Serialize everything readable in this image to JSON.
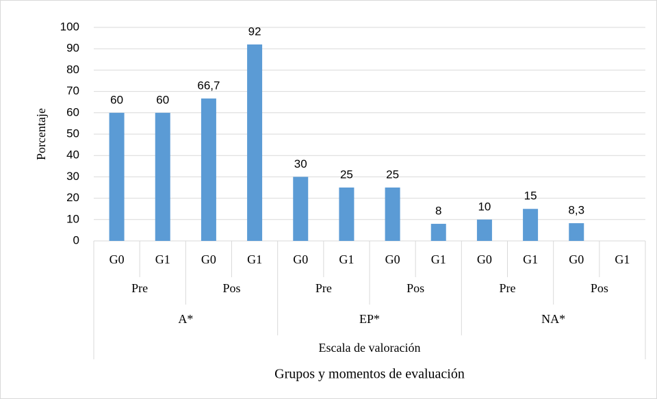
{
  "chart_data": {
    "type": "bar",
    "y_label": "Porcentaje",
    "x_label": "Grupos y momentos de evaluación",
    "categories": [
      "G0",
      "G1",
      "G0",
      "G1",
      "G0",
      "G1",
      "G0",
      "G1",
      "G0",
      "G1",
      "G0",
      "G1"
    ],
    "subgroups": [
      "Pre",
      "Pos",
      "Pre",
      "Pos",
      "Pre",
      "Pos"
    ],
    "groups": [
      "A*",
      "EP*",
      "NA*"
    ],
    "group_title": "Escala de valoración",
    "values": [
      60,
      60,
      66.7,
      92,
      30,
      25,
      25,
      8,
      10,
      15,
      8.3,
      null
    ],
    "value_labels": [
      "60",
      "60",
      "66,7",
      "92",
      "30",
      "25",
      "25",
      "8",
      "10",
      "15",
      "8,3",
      null
    ],
    "color": "#5b9bd5",
    "ylim": [
      0,
      100
    ],
    "yticks": [
      0,
      10,
      20,
      30,
      40,
      50,
      60,
      70,
      80,
      90,
      100
    ],
    "grid": true
  }
}
